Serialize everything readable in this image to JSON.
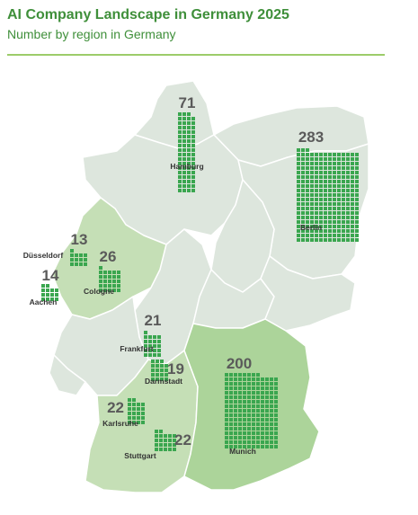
{
  "header": {
    "title": "AI Company Landscape in Germany 2025",
    "subtitle": "Number by region in Germany"
  },
  "colors": {
    "accent": "#3f8f3a",
    "rule": "#9ccc6a",
    "square": "#3aa64f",
    "region_grey": "#dde6dd",
    "region_light_green": "#c5dfb6",
    "region_green": "#acd49a",
    "border": "#ffffff"
  },
  "map": {
    "country": "Germany",
    "markers": [
      {
        "id": "hamburg",
        "city": "Hamburg",
        "count": 71
      },
      {
        "id": "berlin",
        "city": "Berlin",
        "count": 283
      },
      {
        "id": "dusseldorf",
        "city": "Düsseldorf",
        "count": 13
      },
      {
        "id": "cologne",
        "city": "Cologne",
        "count": 26
      },
      {
        "id": "aachen",
        "city": "Aachen",
        "count": 14
      },
      {
        "id": "frankfurt",
        "city": "Frankfurt",
        "count": 21
      },
      {
        "id": "darmstadt",
        "city": "Darmstadt",
        "count": 19
      },
      {
        "id": "munich",
        "city": "Munich",
        "count": 200
      },
      {
        "id": "karlsruhe",
        "city": "Karlsruhe",
        "count": 22
      },
      {
        "id": "stuttgart",
        "city": "Stuttgart",
        "count": 22
      }
    ]
  }
}
